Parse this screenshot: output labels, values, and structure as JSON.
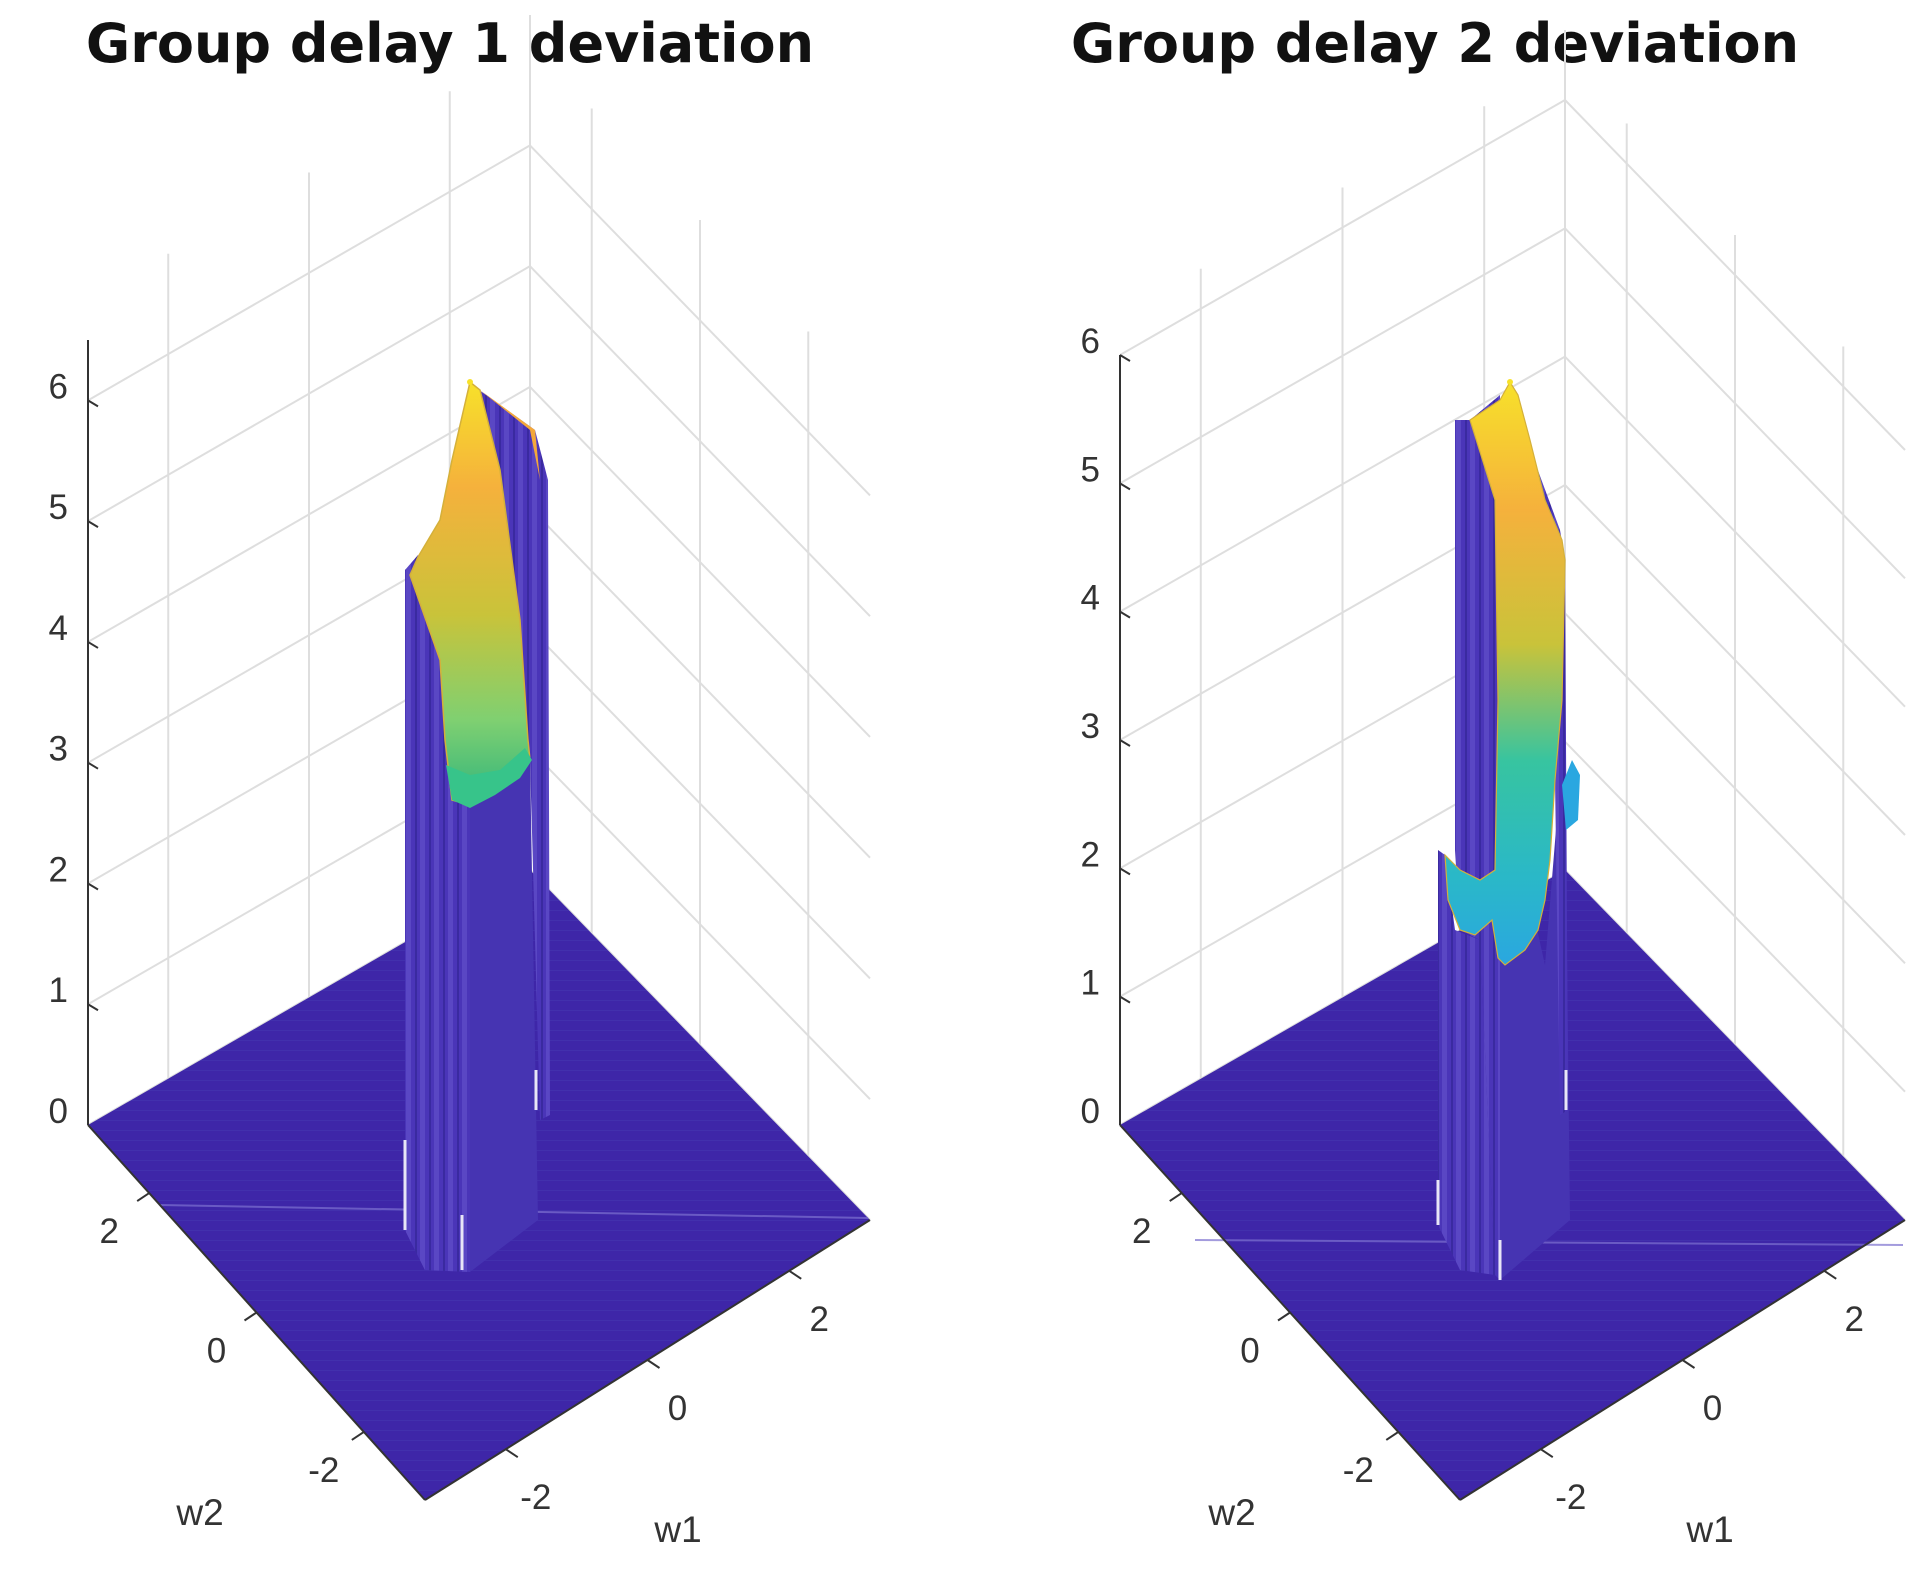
{
  "chart_data": [
    {
      "type": "surface",
      "title": "Group delay 1 deviation",
      "xlabel": "w1",
      "ylabel": "w2",
      "zlabel": "",
      "x_ticks": [
        "-2",
        "0",
        "2"
      ],
      "y_ticks": [
        "-2",
        "0",
        "2"
      ],
      "z_ticks": [
        "0",
        "1",
        "2",
        "3",
        "4",
        "5",
        "6"
      ],
      "xlim": [
        -3.14,
        3.14
      ],
      "ylim": [
        -3.14,
        3.14
      ],
      "zlim": [
        0,
        6.5
      ],
      "grid": true,
      "colormap": "parula",
      "base_value": 0,
      "peak_value": 6.4,
      "min_top_value": 2.8,
      "colors": {
        "base": "#3e26a8",
        "wall": "#4a35b8",
        "wall_light": "#7a6cd6",
        "low": "#2fb47c",
        "mid": "#c9c33a",
        "high": "#f7e12a",
        "orange": "#f4a83a"
      }
    },
    {
      "type": "surface",
      "title": "Group delay 2 deviation",
      "xlabel": "w1",
      "ylabel": "w2",
      "zlabel": "",
      "x_ticks": [
        "-2",
        "0",
        "2"
      ],
      "y_ticks": [
        "-2",
        "0",
        "2"
      ],
      "z_ticks": [
        "0",
        "1",
        "2",
        "3",
        "4",
        "5",
        "6"
      ],
      "xlim": [
        -3.14,
        3.14
      ],
      "ylim": [
        -3.14,
        3.14
      ],
      "zlim": [
        0,
        6
      ],
      "grid": true,
      "colormap": "parula",
      "base_value": 0,
      "peak_value": 5.9,
      "min_top_value": 1.3,
      "colors": {
        "base": "#3e26a8",
        "wall": "#4a35b8",
        "wall_light": "#7a6cd6",
        "low": "#2aa7e0",
        "mid": "#37c4a0",
        "high": "#f7e12a",
        "orange": "#f4a83a"
      }
    }
  ]
}
